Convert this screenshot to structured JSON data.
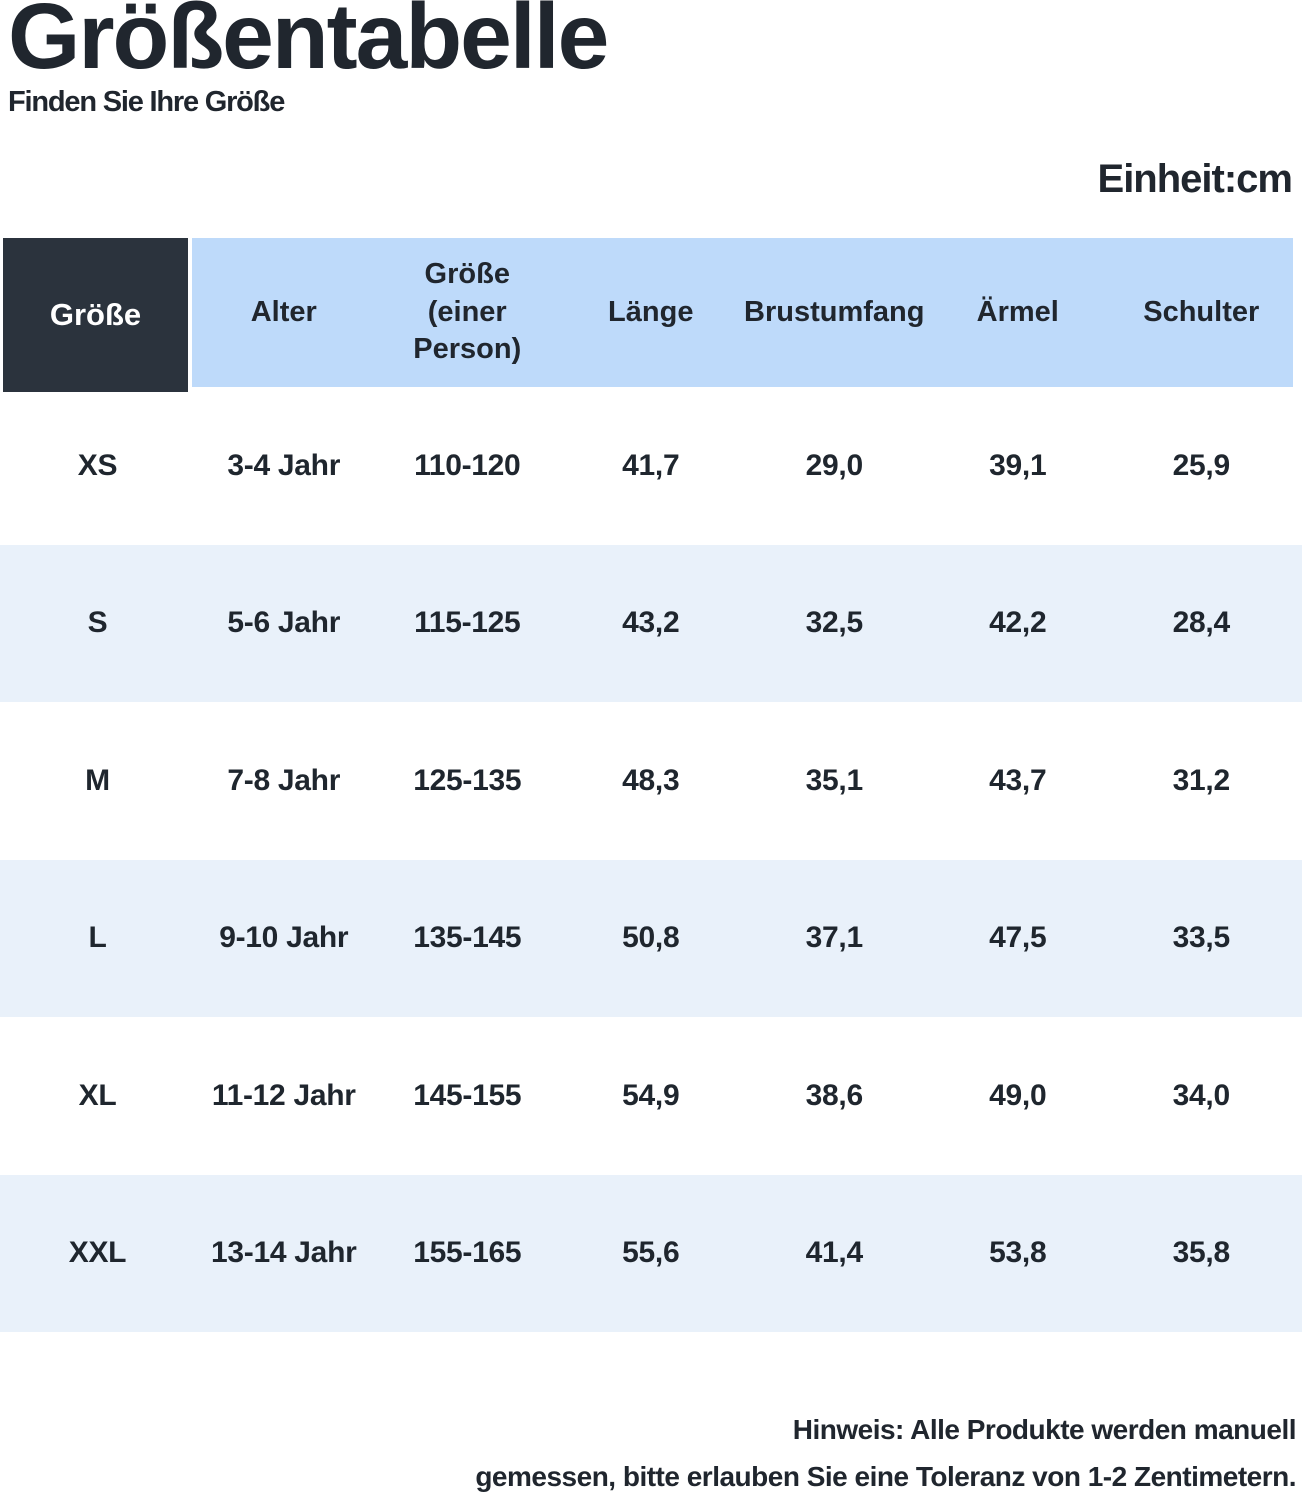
{
  "page": {
    "title": "Größentabelle",
    "subtitle": "Finden Sie Ihre Größe",
    "unit_label": "Einheit:cm",
    "note_line1": "Hinweis: Alle Produkte werden manuell",
    "note_line2": "gemessen, bitte erlauben Sie eine Toleranz von 1-2 Zentimetern."
  },
  "colors": {
    "corner_cell_bg": "#2b333d",
    "header_blue_bg": "#bedafa",
    "row_alt_bg": "#e9f1fa",
    "text_dark": "#20262e",
    "corner_text": "#ffffff"
  },
  "table": {
    "corner_header": "Größe",
    "col_headers": [
      "Alter",
      "Größe\n(einer Person)",
      "Länge",
      "Brustumfang",
      "Ärmel",
      "Schulter"
    ],
    "rows": [
      [
        "XS",
        "3-4 Jahr",
        "110-120",
        "41,7",
        "29,0",
        "39,1",
        "25,9"
      ],
      [
        "S",
        "5-6 Jahr",
        "115-125",
        "43,2",
        "32,5",
        "42,2",
        "28,4"
      ],
      [
        "M",
        "7-8 Jahr",
        "125-135",
        "48,3",
        "35,1",
        "43,7",
        "31,2"
      ],
      [
        "L",
        "9-10 Jahr",
        "135-145",
        "50,8",
        "37,1",
        "47,5",
        "33,5"
      ],
      [
        "XL",
        "11-12 Jahr",
        "145-155",
        "54,9",
        "38,6",
        "49,0",
        "34,0"
      ],
      [
        "XXL",
        "13-14 Jahr",
        "155-165",
        "55,6",
        "41,4",
        "53,8",
        "35,8"
      ]
    ]
  }
}
